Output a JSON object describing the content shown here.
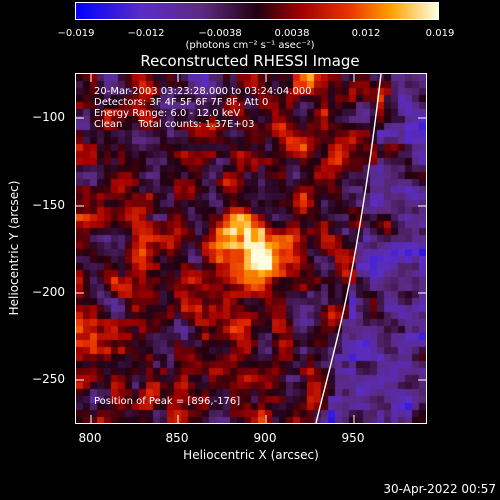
{
  "colorbar": {
    "ticks": [
      "−0.019",
      "−0.012",
      "−0.0038",
      "0.0038",
      "0.012",
      "0.019"
    ],
    "units": "(photons cm⁻² s⁻¹ asec⁻²)"
  },
  "title": "Reconstructed RHESSI Image",
  "info": {
    "time": "20-Mar-2003 03:23:28.000 to 03:24:04.000",
    "detectors": "Detectors: 3F 4F 5F 6F 7F 8F, Att 0",
    "energy": "Energy Range: 6.0 - 12.0 keV",
    "clean": "Clean     Total counts: 1.37E+03"
  },
  "peak": "Position of Peak = [896,-176]",
  "axes": {
    "xlabel": "Heliocentric X (arcsec)",
    "ylabel": "Heliocentric Y (arcsec)",
    "xticks": [
      "800",
      "850",
      "900",
      "950"
    ],
    "yticks": [
      "−100",
      "−150",
      "−200",
      "−250"
    ]
  },
  "datestamp": "30-Apr-2022 00:57",
  "colors": {
    "background": "#000000",
    "limb": "#ffffff"
  }
}
